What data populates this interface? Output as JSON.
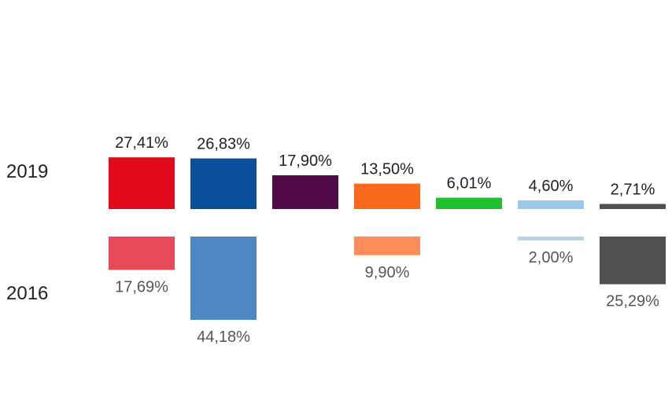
{
  "chart_data": {
    "type": "bar",
    "title": "",
    "xlabel": "",
    "ylabel": "",
    "series": [
      {
        "name": "2019",
        "values": [
          27.41,
          26.83,
          17.9,
          13.5,
          6.01,
          4.6,
          2.71
        ],
        "labels": [
          "27,41%",
          "26,83%",
          "17,90%",
          "13,50%",
          "6,01%",
          "4,60%",
          "2,71%"
        ],
        "colors": [
          "#e00a1a",
          "#0a4f9a",
          "#500a45",
          "#fb6a1c",
          "#1fc130",
          "#9bc7e8",
          "#505050"
        ]
      },
      {
        "name": "2016",
        "values": [
          17.69,
          44.18,
          null,
          9.9,
          null,
          2.0,
          25.29
        ],
        "labels": [
          "17,69%",
          "44,18%",
          "",
          "9,90%",
          "",
          "2,00%",
          "25,29%"
        ],
        "colors": [
          "#e84a58",
          "#4d88c5",
          "",
          "#fc8c59",
          "",
          "#b3d5ee",
          "#505050"
        ]
      }
    ],
    "ylim": [
      0,
      50
    ],
    "legend": "none",
    "grid": false
  }
}
